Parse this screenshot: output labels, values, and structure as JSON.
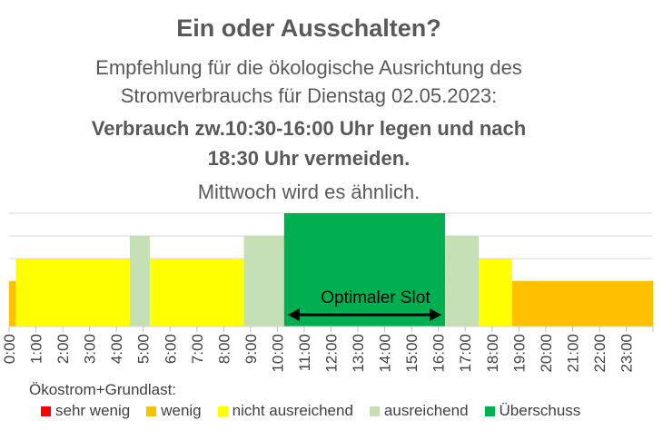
{
  "chart_data": {
    "type": "bar",
    "title": "Ein oder Ausschalten?",
    "subtitle_lines": [
      "Empfehlung für die ökologische Ausrichtung des",
      "Stromverbrauchs für Dienstag 02.05.2023:"
    ],
    "recommendation_lines": [
      "Verbrauch zw.10:30-16:00 Uhr legen und nach",
      "18:30 Uhr vermeiden."
    ],
    "note": "Mittwoch wird es ähnlich.",
    "categories": [
      "0:00",
      "1:00",
      "2:00",
      "3:00",
      "4:00",
      "5:00",
      "6:00",
      "7:00",
      "8:00",
      "9:00",
      "10:00",
      "11:00",
      "12:00",
      "13:00",
      "14:00",
      "15:00",
      "16:00",
      "17:00",
      "18:00",
      "19:00",
      "20:00",
      "21:00",
      "22:00",
      "23:00"
    ],
    "x_unit": "hours",
    "x_range": [
      0,
      24
    ],
    "level_max": 5,
    "segments": [
      {
        "start": 0.0,
        "end": 0.25,
        "level": 2,
        "category": "wenig"
      },
      {
        "start": 0.25,
        "end": 4.5,
        "level": 3,
        "category": "nicht ausreichend"
      },
      {
        "start": 4.5,
        "end": 5.25,
        "level": 4,
        "category": "ausreichend"
      },
      {
        "start": 5.25,
        "end": 8.75,
        "level": 3,
        "category": "nicht ausreichend"
      },
      {
        "start": 8.75,
        "end": 10.25,
        "level": 4,
        "category": "ausreichend"
      },
      {
        "start": 10.25,
        "end": 16.25,
        "level": 5,
        "category": "Überschuss"
      },
      {
        "start": 16.25,
        "end": 17.5,
        "level": 4,
        "category": "ausreichend"
      },
      {
        "start": 17.5,
        "end": 18.75,
        "level": 3,
        "category": "nicht ausreichend"
      },
      {
        "start": 18.75,
        "end": 24.0,
        "level": 2,
        "category": "wenig"
      }
    ],
    "annotation": {
      "text": "Optimaler Slot",
      "start": 10.25,
      "end": 16.25
    },
    "legend_title": "Ökostrom+Grundlast:",
    "legend": [
      {
        "label": "sehr wenig",
        "color": "#ff0000"
      },
      {
        "label": "wenig",
        "color": "#ffc000"
      },
      {
        "label": "nicht ausreichend",
        "color": "#ffff00"
      },
      {
        "label": "ausreichend",
        "color": "#c5e0b4"
      },
      {
        "label": "Überschuss",
        "color": "#00b050"
      }
    ],
    "grid": true,
    "legend_position": "bottom"
  }
}
